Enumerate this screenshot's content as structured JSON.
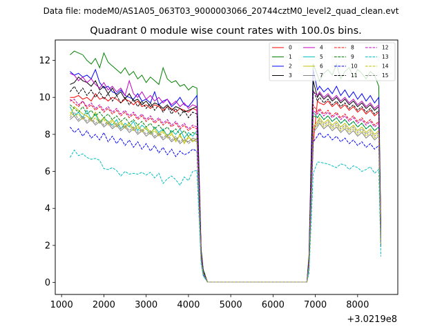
{
  "figure": {
    "suptitle": "Data file: modeM0/AS1A05_063T03_9000003066_20744cztM0_level2_quad_clean.evt",
    "background": "#ffffff"
  },
  "chart_data": {
    "type": "line",
    "title": "Quadrant 0 module wise count rates with 100.0s bins.",
    "xlabel": "",
    "ylabel": "",
    "x_offset_label": "+3.0219e8",
    "xlim": [
      850,
      8950
    ],
    "ylim": [
      -0.65,
      13.1
    ],
    "xticks": [
      1000,
      2000,
      3000,
      4000,
      5000,
      6000,
      7000,
      8000
    ],
    "xtick_labels": [
      "1000",
      "2000",
      "3000",
      "4000",
      "5000",
      "6000",
      "7000",
      "8000"
    ],
    "yticks": [
      0,
      2,
      4,
      6,
      8,
      10,
      12
    ],
    "ytick_labels": [
      "0",
      "2",
      "4",
      "6",
      "8",
      "10",
      "12"
    ],
    "legend_position": "top-right",
    "x": [
      1200,
      1300,
      1400,
      1500,
      1600,
      1700,
      1800,
      1900,
      2000,
      2100,
      2200,
      2300,
      2400,
      2500,
      2600,
      2700,
      2800,
      2900,
      3000,
      3100,
      3200,
      3300,
      3400,
      3500,
      3600,
      3700,
      3800,
      3900,
      4000,
      4100,
      4200,
      4300,
      4350,
      4450,
      4600,
      5000,
      5500,
      6000,
      6500,
      6800,
      6850,
      6950,
      7050,
      7100,
      7200,
      7300,
      7400,
      7500,
      7600,
      7700,
      7800,
      7900,
      8000,
      8100,
      8200,
      8300,
      8400,
      8500,
      8550
    ],
    "series": [
      {
        "name": "0",
        "color": "#ff0000",
        "dash": "solid",
        "values": [
          10.0,
          10.0,
          10.1,
          9.9,
          10.0,
          9.8,
          10.2,
          9.9,
          10.0,
          9.8,
          10.0,
          9.9,
          9.7,
          9.9,
          9.8,
          9.6,
          9.8,
          9.5,
          9.6,
          9.4,
          9.6,
          9.5,
          9.3,
          9.5,
          9.4,
          9.2,
          9.4,
          9.3,
          9.2,
          9.4,
          9.3,
          1.5,
          0.6,
          0.02,
          0.02,
          0.02,
          0.02,
          0.02,
          0.02,
          0.02,
          1.0,
          7.5,
          9.8,
          9.7,
          9.6,
          9.8,
          9.5,
          9.7,
          9.4,
          9.6,
          9.3,
          9.5,
          9.2,
          9.4,
          9.1,
          9.3,
          9.0,
          9.2,
          2.5
        ]
      },
      {
        "name": "1",
        "color": "#008000",
        "dash": "solid",
        "values": [
          12.3,
          12.5,
          12.4,
          12.3,
          12.0,
          11.8,
          12.1,
          11.6,
          12.4,
          11.9,
          11.7,
          11.5,
          11.3,
          11.6,
          11.2,
          11.4,
          11.0,
          11.2,
          10.8,
          11.1,
          10.9,
          10.7,
          11.6,
          11.0,
          10.8,
          10.9,
          10.6,
          10.7,
          10.4,
          10.6,
          10.5,
          1.8,
          0.7,
          0.02,
          0.02,
          0.02,
          0.02,
          0.02,
          0.02,
          0.02,
          1.5,
          11.8,
          11.2,
          10.9,
          11.3,
          11.5,
          11.2,
          11.8,
          11.0,
          11.4,
          11.6,
          11.1,
          11.5,
          11.3,
          11.0,
          11.4,
          11.2,
          10.6,
          2.8
        ]
      },
      {
        "name": "2",
        "color": "#0000ff",
        "dash": "solid",
        "values": [
          11.4,
          11.2,
          11.3,
          11.1,
          11.2,
          11.0,
          11.5,
          10.8,
          10.5,
          10.6,
          10.3,
          10.2,
          10.4,
          10.1,
          10.0,
          9.9,
          10.2,
          9.8,
          9.9,
          9.7,
          10.3,
          9.6,
          9.8,
          9.9,
          9.5,
          9.7,
          10.0,
          9.6,
          9.5,
          9.8,
          10.1,
          1.7,
          0.6,
          0.02,
          0.02,
          0.02,
          0.02,
          0.02,
          0.02,
          0.02,
          1.3,
          11.5,
          10.4,
          10.6,
          10.3,
          10.5,
          10.2,
          10.6,
          10.1,
          10.4,
          10.0,
          10.3,
          9.9,
          10.2,
          9.8,
          10.1,
          9.7,
          10.0,
          2.7
        ]
      },
      {
        "name": "3",
        "color": "#000000",
        "dash": "solid",
        "values": [
          10.7,
          10.8,
          11.1,
          10.9,
          10.8,
          10.6,
          10.9,
          10.4,
          10.6,
          10.2,
          10.5,
          10.1,
          10.3,
          9.9,
          10.2,
          9.8,
          9.9,
          9.6,
          9.8,
          9.5,
          9.7,
          9.6,
          9.4,
          9.6,
          9.3,
          9.5,
          9.4,
          9.2,
          9.3,
          9.4,
          9.5,
          1.7,
          0.6,
          0.02,
          0.02,
          0.02,
          0.02,
          0.02,
          0.02,
          0.02,
          1.2,
          10.9,
          10.0,
          10.2,
          9.9,
          10.1,
          9.8,
          10.0,
          9.7,
          9.9,
          9.6,
          9.8,
          9.5,
          9.7,
          9.4,
          9.6,
          9.3,
          9.5,
          2.6
        ]
      },
      {
        "name": "4",
        "color": "#bf00bf",
        "dash": "solid",
        "values": [
          11.3,
          11.2,
          10.9,
          11.1,
          10.8,
          11.0,
          10.7,
          10.5,
          10.8,
          10.4,
          10.6,
          10.3,
          10.5,
          10.1,
          10.9,
          10.2,
          10.0,
          10.3,
          9.9,
          10.1,
          9.8,
          10.0,
          9.7,
          9.9,
          9.6,
          9.8,
          9.5,
          9.7,
          9.4,
          9.6,
          9.5,
          1.6,
          0.6,
          0.02,
          0.02,
          0.02,
          0.02,
          0.02,
          0.02,
          0.02,
          1.2,
          10.3,
          10.1,
          10.3,
          10.0,
          10.2,
          9.9,
          10.1,
          9.8,
          10.0,
          9.7,
          9.9,
          9.6,
          9.8,
          9.5,
          9.7,
          9.4,
          9.6,
          2.6
        ]
      },
      {
        "name": "5",
        "color": "#00bfbf",
        "dash": "solid",
        "values": [
          9.5,
          9.0,
          9.2,
          8.9,
          9.3,
          8.8,
          9.1,
          8.6,
          8.9,
          8.7,
          8.5,
          8.8,
          8.3,
          8.6,
          8.4,
          8.7,
          8.2,
          8.5,
          8.3,
          8.0,
          8.4,
          8.1,
          8.3,
          7.9,
          8.2,
          8.0,
          8.3,
          7.8,
          8.1,
          7.9,
          8.2,
          1.4,
          0.5,
          0.02,
          0.02,
          0.02,
          0.02,
          0.02,
          0.02,
          0.02,
          1.0,
          9.2,
          8.9,
          9.1,
          8.8,
          9.0,
          8.7,
          8.9,
          8.6,
          8.8,
          8.5,
          8.7,
          8.4,
          8.6,
          8.3,
          8.5,
          8.2,
          8.4,
          2.2
        ]
      },
      {
        "name": "6",
        "color": "#bfbf00",
        "dash": "solid",
        "values": [
          9.0,
          9.5,
          9.3,
          9.1,
          9.0,
          8.8,
          9.2,
          8.7,
          8.9,
          8.6,
          8.8,
          8.5,
          8.7,
          8.4,
          8.6,
          8.3,
          8.5,
          8.2,
          8.4,
          8.1,
          8.3,
          8.0,
          8.2,
          7.9,
          8.1,
          7.6,
          8.0,
          7.5,
          7.9,
          7.6,
          7.8,
          1.3,
          0.5,
          0.02,
          0.02,
          0.02,
          0.02,
          0.02,
          0.02,
          0.02,
          0.9,
          8.4,
          8.7,
          8.9,
          8.6,
          8.8,
          8.5,
          8.7,
          8.4,
          8.6,
          8.3,
          8.5,
          8.2,
          8.4,
          8.1,
          8.3,
          8.0,
          8.2,
          2.1
        ]
      },
      {
        "name": "7",
        "color": "#808080",
        "dash": "solid",
        "values": [
          8.8,
          9.0,
          8.7,
          8.9,
          8.6,
          8.8,
          8.5,
          8.7,
          8.4,
          8.6,
          8.3,
          8.5,
          8.2,
          8.4,
          8.1,
          8.3,
          8.0,
          8.2,
          7.9,
          8.1,
          7.8,
          8.0,
          7.7,
          7.9,
          7.6,
          7.8,
          7.5,
          7.7,
          7.6,
          7.8,
          7.7,
          1.3,
          0.5,
          0.02,
          0.02,
          0.02,
          0.02,
          0.02,
          0.02,
          0.02,
          0.8,
          8.1,
          8.4,
          8.6,
          8.3,
          8.5,
          8.2,
          8.4,
          8.1,
          8.3,
          8.0,
          8.2,
          7.9,
          8.1,
          7.8,
          8.0,
          7.7,
          7.9,
          2.0
        ]
      },
      {
        "name": "8",
        "color": "#ff0000",
        "dash": "dashed",
        "values": [
          9.9,
          9.7,
          9.5,
          9.8,
          9.4,
          9.6,
          9.3,
          9.5,
          9.2,
          9.4,
          9.1,
          9.3,
          9.0,
          9.2,
          8.9,
          9.1,
          8.8,
          9.0,
          8.7,
          8.9,
          8.6,
          8.8,
          8.5,
          8.7,
          8.4,
          8.6,
          8.3,
          8.5,
          8.2,
          8.4,
          8.3,
          1.4,
          0.5,
          0.02,
          0.02,
          0.02,
          0.02,
          0.02,
          0.02,
          0.02,
          1.0,
          9.6,
          9.2,
          9.4,
          9.1,
          9.3,
          9.0,
          9.2,
          8.9,
          9.1,
          8.8,
          9.0,
          8.7,
          8.9,
          8.6,
          8.8,
          8.5,
          8.7,
          2.3
        ]
      },
      {
        "name": "9",
        "color": "#008000",
        "dash": "dashed",
        "values": [
          9.6,
          9.4,
          9.2,
          9.5,
          9.1,
          9.3,
          9.0,
          9.2,
          8.9,
          9.1,
          8.8,
          9.0,
          8.7,
          8.9,
          8.6,
          8.8,
          8.5,
          8.7,
          8.4,
          8.6,
          8.3,
          8.5,
          8.2,
          8.4,
          8.1,
          8.3,
          8.0,
          8.2,
          7.9,
          8.1,
          8.0,
          1.3,
          0.5,
          0.02,
          0.02,
          0.02,
          0.02,
          0.02,
          0.02,
          0.02,
          0.9,
          9.0,
          8.9,
          9.1,
          8.8,
          9.0,
          8.7,
          8.9,
          8.6,
          8.8,
          8.5,
          8.7,
          8.4,
          8.6,
          8.3,
          8.5,
          8.2,
          8.4,
          2.2
        ]
      },
      {
        "name": "10",
        "color": "#0000ff",
        "dash": "dashed",
        "values": [
          8.4,
          8.1,
          8.3,
          7.9,
          8.2,
          7.8,
          8.0,
          7.7,
          8.1,
          7.6,
          7.9,
          7.5,
          7.8,
          7.4,
          7.7,
          7.3,
          7.6,
          7.2,
          7.5,
          7.1,
          7.4,
          7.0,
          7.3,
          6.9,
          7.2,
          6.8,
          7.1,
          6.9,
          7.0,
          7.2,
          7.1,
          1.2,
          0.4,
          0.02,
          0.02,
          0.02,
          0.02,
          0.02,
          0.02,
          0.02,
          0.8,
          7.6,
          7.9,
          8.1,
          7.8,
          8.0,
          7.7,
          7.9,
          7.6,
          7.8,
          7.5,
          7.7,
          7.4,
          7.6,
          7.3,
          7.5,
          7.2,
          7.4,
          1.9
        ]
      },
      {
        "name": "11",
        "color": "#000000",
        "dash": "dashed",
        "values": [
          10.3,
          10.6,
          10.2,
          10.5,
          10.1,
          10.4,
          10.0,
          10.3,
          9.9,
          10.2,
          9.8,
          10.1,
          9.7,
          10.0,
          9.6,
          9.9,
          9.5,
          9.8,
          9.4,
          9.7,
          9.3,
          9.6,
          9.2,
          9.5,
          9.1,
          9.4,
          9.0,
          9.3,
          8.9,
          9.2,
          9.1,
          1.6,
          0.6,
          0.02,
          0.02,
          0.02,
          0.02,
          0.02,
          0.02,
          0.02,
          1.1,
          10.4,
          9.8,
          10.0,
          9.7,
          9.9,
          9.6,
          9.8,
          9.5,
          9.7,
          9.4,
          9.6,
          9.3,
          9.5,
          9.2,
          9.4,
          9.1,
          9.3,
          2.5
        ]
      },
      {
        "name": "12",
        "color": "#bf00bf",
        "dash": "dashed",
        "values": [
          9.8,
          9.9,
          9.6,
          9.8,
          9.5,
          9.7,
          9.4,
          9.6,
          9.3,
          9.5,
          9.2,
          9.4,
          9.1,
          9.3,
          9.0,
          9.2,
          8.9,
          9.1,
          8.8,
          9.0,
          8.7,
          8.9,
          8.6,
          8.8,
          8.5,
          8.7,
          8.4,
          8.6,
          8.3,
          8.5,
          8.4,
          1.5,
          0.5,
          0.02,
          0.02,
          0.02,
          0.02,
          0.02,
          0.02,
          0.02,
          1.0,
          9.3,
          9.1,
          9.3,
          9.0,
          9.2,
          8.9,
          9.1,
          8.8,
          9.0,
          8.7,
          8.9,
          8.6,
          8.8,
          8.5,
          8.7,
          8.4,
          8.6,
          2.3
        ]
      },
      {
        "name": "13",
        "color": "#00bfbf",
        "dash": "dashed",
        "values": [
          6.75,
          7.15,
          6.85,
          6.95,
          6.75,
          6.65,
          6.7,
          6.6,
          6.15,
          6.1,
          6.2,
          6.05,
          5.75,
          6.0,
          5.85,
          5.9,
          5.85,
          5.95,
          5.8,
          5.95,
          5.65,
          5.9,
          5.35,
          5.6,
          5.75,
          5.55,
          5.25,
          5.7,
          5.5,
          6.0,
          6.05,
          1.0,
          0.35,
          0.02,
          0.02,
          0.02,
          0.02,
          0.02,
          0.02,
          0.02,
          0.5,
          5.9,
          6.5,
          6.5,
          6.45,
          6.4,
          6.3,
          6.2,
          6.4,
          6.35,
          6.1,
          6.3,
          6.2,
          6.0,
          6.1,
          6.25,
          5.9,
          6.1,
          1.4
        ]
      },
      {
        "name": "14",
        "color": "#bfbf00",
        "dash": "dashed",
        "values": [
          9.2,
          9.0,
          9.1,
          8.8,
          9.0,
          8.7,
          8.9,
          8.6,
          8.8,
          8.5,
          8.7,
          8.4,
          8.6,
          8.3,
          8.5,
          8.2,
          8.4,
          8.1,
          8.3,
          8.0,
          8.2,
          7.9,
          8.1,
          7.8,
          8.0,
          7.7,
          7.9,
          7.6,
          7.8,
          7.7,
          7.6,
          1.3,
          0.5,
          0.02,
          0.02,
          0.02,
          0.02,
          0.02,
          0.02,
          0.02,
          0.9,
          8.3,
          8.5,
          8.7,
          8.4,
          8.6,
          8.3,
          8.5,
          8.2,
          8.4,
          8.1,
          8.3,
          8.0,
          8.2,
          7.9,
          8.1,
          7.8,
          8.0,
          2.0
        ]
      },
      {
        "name": "15",
        "color": "#808080",
        "dash": "dashed",
        "values": [
          8.9,
          9.2,
          8.8,
          9.0,
          8.7,
          8.9,
          8.6,
          8.8,
          8.5,
          8.7,
          8.4,
          8.6,
          8.3,
          8.5,
          8.2,
          8.4,
          8.1,
          8.3,
          8.0,
          8.2,
          7.9,
          8.1,
          7.8,
          8.0,
          7.7,
          7.9,
          7.6,
          7.8,
          7.5,
          7.7,
          7.6,
          1.3,
          0.5,
          0.02,
          0.02,
          0.02,
          0.02,
          0.02,
          0.02,
          0.02,
          0.9,
          8.2,
          8.6,
          8.8,
          8.5,
          8.7,
          8.4,
          8.6,
          8.3,
          8.5,
          8.2,
          8.4,
          8.1,
          8.3,
          8.0,
          8.2,
          7.9,
          8.1,
          2.1
        ]
      }
    ]
  }
}
